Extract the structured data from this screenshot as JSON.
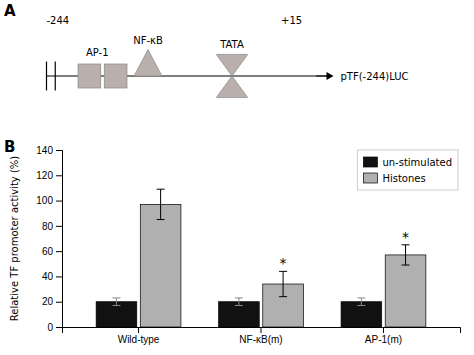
{
  "chart_data": {
    "type": "bar",
    "categories": [
      "Wild-type",
      "NF-κB(m)",
      "AP-1(m)"
    ],
    "series": [
      {
        "name": "un-stimulated",
        "color": "#111111",
        "values": [
          20,
          20,
          20
        ],
        "errors": [
          3,
          3,
          3
        ]
      },
      {
        "name": "Histones",
        "color": "#b0b0b0",
        "values": [
          97,
          34,
          57
        ],
        "errors": [
          12,
          10,
          8
        ]
      }
    ],
    "ylabel": "Relative TF promoter activity (%)",
    "ylim": [
      0,
      140
    ],
    "yticks": [
      0,
      20,
      40,
      60,
      80,
      100,
      120,
      140
    ],
    "grid": false,
    "legend": "upper right",
    "annotations": [
      {
        "text": "A"
      },
      {
        "text": "-244"
      },
      {
        "text": "+15"
      },
      {
        "text": "pTF(-244)LUC"
      },
      {
        "text": "AP-1"
      },
      {
        "text": "NF-κB"
      },
      {
        "text": "TATA"
      },
      {
        "text": "B"
      },
      {
        "text": "*",
        "category": "NF-κB(m)",
        "series": "Histones"
      },
      {
        "text": "*",
        "category": "AP-1(m)",
        "series": "Histones"
      }
    ]
  }
}
